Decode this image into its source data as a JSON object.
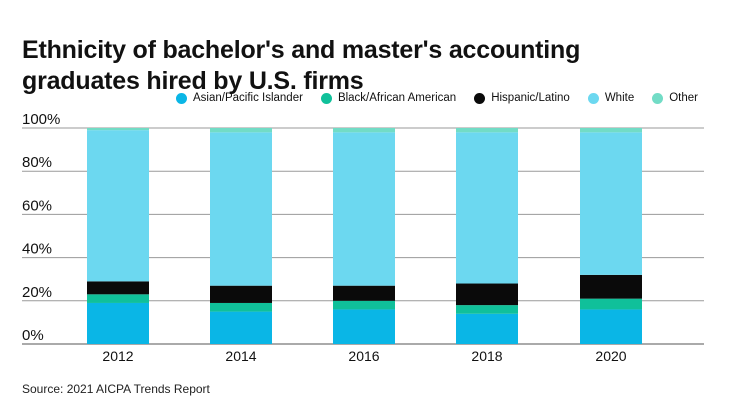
{
  "chart_data": {
    "type": "bar",
    "stacked": true,
    "title": "Ethnicity of bachelor's and master's accounting graduates hired by U.S. firms",
    "categories": [
      "2012",
      "2014",
      "2016",
      "2018",
      "2020"
    ],
    "ylim": [
      0,
      100
    ],
    "yticks": [
      "0%",
      "20%",
      "40%",
      "60%",
      "80%",
      "100%"
    ],
    "ytick_values": [
      0,
      20,
      40,
      60,
      80,
      100
    ],
    "legend_position": "top-right",
    "series": [
      {
        "name": "Asian/Pacific Islander",
        "color": "#0ab6e6",
        "values": [
          19,
          15,
          16,
          14,
          16
        ]
      },
      {
        "name": "Black/African American",
        "color": "#10c09a",
        "values": [
          4,
          4,
          4,
          4,
          5
        ]
      },
      {
        "name": "Hispanic/Latino",
        "color": "#0a0a0a",
        "values": [
          6,
          8,
          7,
          10,
          11
        ]
      },
      {
        "name": "White",
        "color": "#6cd8f0",
        "values": [
          70,
          71,
          71,
          70,
          66
        ]
      },
      {
        "name": "Other",
        "color": "#72dcc6",
        "values": [
          1,
          2,
          2,
          2,
          2
        ]
      }
    ],
    "source": "Source: 2021 AICPA Trends Report"
  }
}
